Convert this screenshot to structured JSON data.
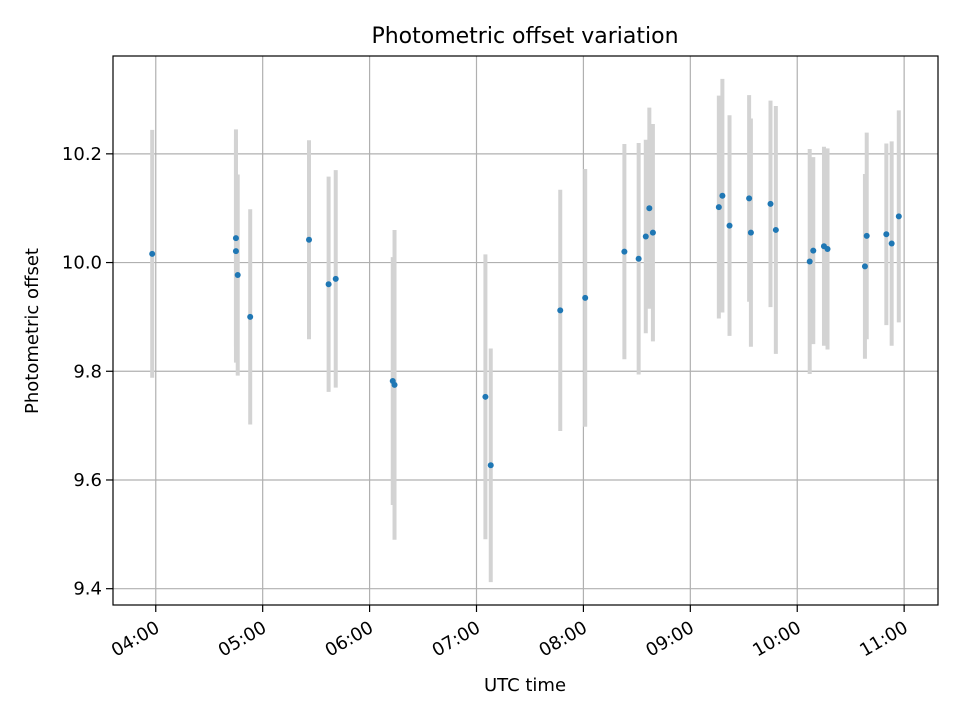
{
  "chart_data": {
    "type": "scatter",
    "title": "Photometric offset variation",
    "xlabel": "UTC time",
    "ylabel": "Photometric offset",
    "xlim": [
      "03:36",
      "11:19"
    ],
    "ylim": [
      9.37,
      10.38
    ],
    "x_ticks": [
      "04:00",
      "05:00",
      "06:00",
      "07:00",
      "08:00",
      "09:00",
      "10:00",
      "11:00"
    ],
    "y_ticks": [
      9.4,
      9.6,
      9.8,
      10.0,
      10.2
    ],
    "grid": true,
    "colors": {
      "point": "#1f77b4",
      "errorbar": "#d3d3d3",
      "grid": "#b0b0b0"
    },
    "points": [
      {
        "t": "03:58",
        "y": 10.016,
        "err": 0.228
      },
      {
        "t": "04:45",
        "y": 10.045,
        "err": 0.2
      },
      {
        "t": "04:45",
        "y": 10.021,
        "err": 0.205
      },
      {
        "t": "04:46",
        "y": 9.977,
        "err": 0.185
      },
      {
        "t": "04:53",
        "y": 9.9,
        "err": 0.198
      },
      {
        "t": "05:26",
        "y": 10.042,
        "err": 0.183
      },
      {
        "t": "05:37",
        "y": 9.96,
        "err": 0.198
      },
      {
        "t": "05:41",
        "y": 9.97,
        "err": 0.2
      },
      {
        "t": "06:13",
        "y": 9.782,
        "err": 0.228
      },
      {
        "t": "06:14",
        "y": 9.775,
        "err": 0.285
      },
      {
        "t": "07:05",
        "y": 9.753,
        "err": 0.262
      },
      {
        "t": "07:08",
        "y": 9.627,
        "err": 0.215
      },
      {
        "t": "07:47",
        "y": 9.912,
        "err": 0.222
      },
      {
        "t": "08:01",
        "y": 9.935,
        "err": 0.237
      },
      {
        "t": "08:23",
        "y": 10.02,
        "err": 0.198
      },
      {
        "t": "08:31",
        "y": 10.007,
        "err": 0.213
      },
      {
        "t": "08:35",
        "y": 10.048,
        "err": 0.178
      },
      {
        "t": "08:37",
        "y": 10.1,
        "err": 0.185
      },
      {
        "t": "08:39",
        "y": 10.055,
        "err": 0.2
      },
      {
        "t": "09:16",
        "y": 10.102,
        "err": 0.205
      },
      {
        "t": "09:18",
        "y": 10.123,
        "err": 0.215
      },
      {
        "t": "09:22",
        "y": 10.068,
        "err": 0.203
      },
      {
        "t": "09:33",
        "y": 10.118,
        "err": 0.19
      },
      {
        "t": "09:34",
        "y": 10.055,
        "err": 0.21
      },
      {
        "t": "09:45",
        "y": 10.108,
        "err": 0.19
      },
      {
        "t": "09:48",
        "y": 10.06,
        "err": 0.228
      },
      {
        "t": "10:07",
        "y": 10.002,
        "err": 0.207
      },
      {
        "t": "10:09",
        "y": 10.022,
        "err": 0.172
      },
      {
        "t": "10:15",
        "y": 10.03,
        "err": 0.183
      },
      {
        "t": "10:17",
        "y": 10.025,
        "err": 0.185
      },
      {
        "t": "10:38",
        "y": 9.993,
        "err": 0.17
      },
      {
        "t": "10:39",
        "y": 10.049,
        "err": 0.19
      },
      {
        "t": "10:50",
        "y": 10.052,
        "err": 0.167
      },
      {
        "t": "10:53",
        "y": 10.035,
        "err": 0.188
      },
      {
        "t": "10:57",
        "y": 10.085,
        "err": 0.195
      }
    ]
  }
}
